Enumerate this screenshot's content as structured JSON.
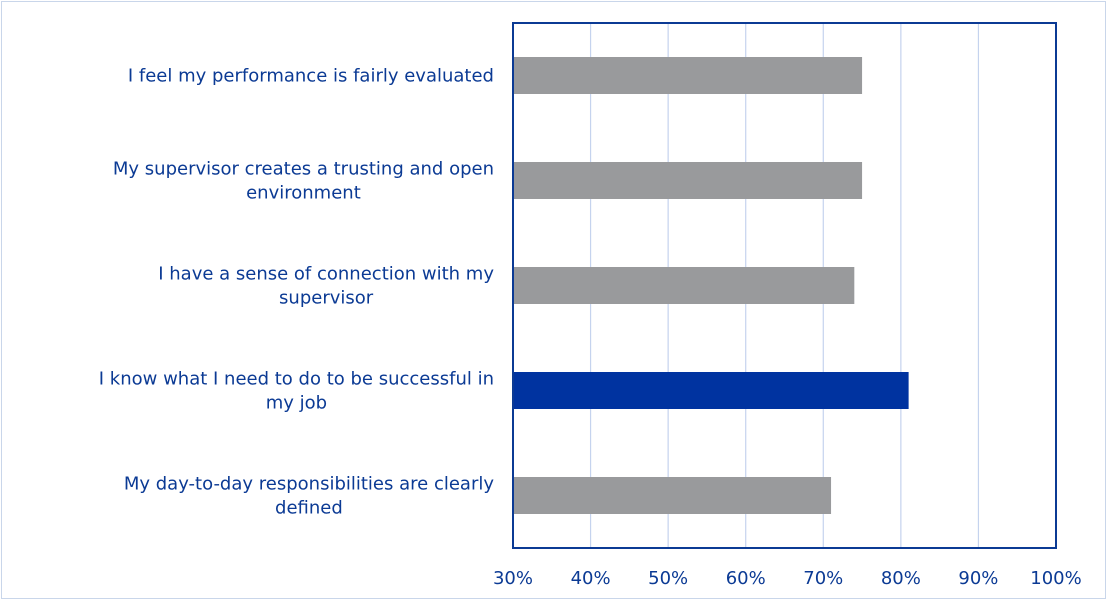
{
  "chart_data": {
    "type": "bar",
    "orientation": "horizontal",
    "categories": [
      "I feel my performance is fairly evaluated",
      "My supervisor creates a trusting and open environment",
      "I have a sense of connection with my supervisor",
      "I know what I need to do to be successful in my job",
      "My day-to-day responsibilities are clearly defined"
    ],
    "category_lines": [
      [
        "I feel my performance is fairly evaluated"
      ],
      [
        "My supervisor creates a trusting and open",
        "environment"
      ],
      [
        "I have a sense of connection with my",
        "supervisor"
      ],
      [
        "I know what I need to do to be successful in",
        "my job"
      ],
      [
        "My day-to-day responsibilities are clearly",
        "defined"
      ]
    ],
    "values": [
      0.75,
      0.75,
      0.74,
      0.81,
      0.71
    ],
    "highlight_index": 3,
    "xlim": [
      0.3,
      1.0
    ],
    "ticks": [
      0.3,
      0.4,
      0.5,
      0.6,
      0.7,
      0.8,
      0.9,
      1.0
    ],
    "tick_labels": [
      "30%",
      "40%",
      "50%",
      "60%",
      "70%",
      "80%",
      "90%",
      "100%"
    ],
    "grid": true,
    "title": "",
    "xlabel": "",
    "ylabel": "",
    "colors": {
      "bar": "#999a9c",
      "highlight": "#0033a0",
      "axis": "#0b3a94",
      "grid": "#c5d3ee",
      "text": "#0b3a94"
    }
  }
}
